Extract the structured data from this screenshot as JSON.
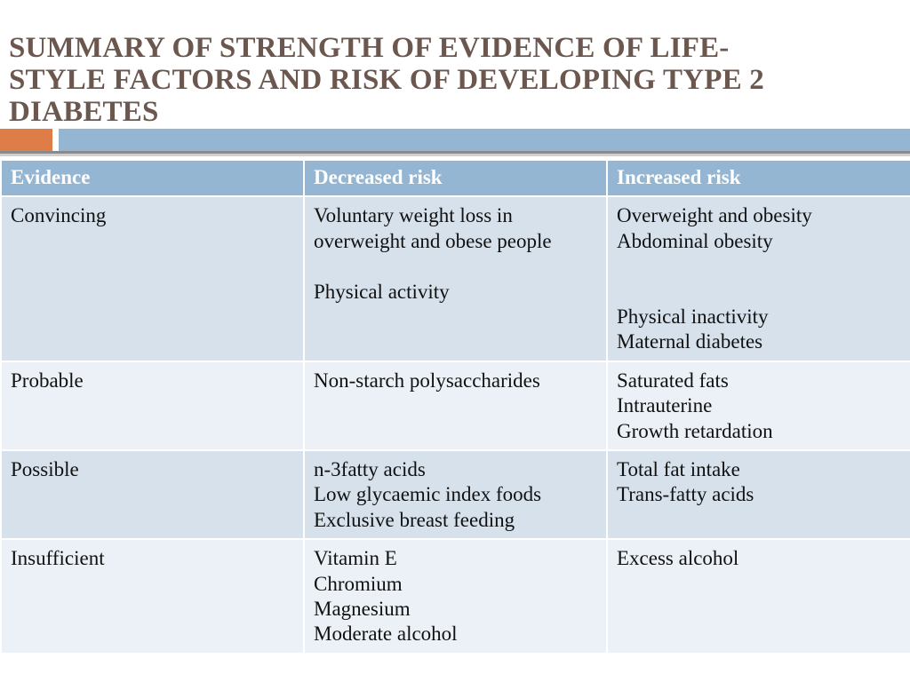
{
  "title": {
    "lines": [
      "SUMMARY OF STRENGTH OF EVIDENCE OF LIFE-",
      "STYLE FACTORS AND RISK OF DEVELOPING TYPE 2",
      "DIABETES"
    ]
  },
  "colors": {
    "title": "#6b574e",
    "accent_orange": "#df7d48",
    "accent_blue": "#94b6d2",
    "header_bg": "#94b6d2",
    "row_dark_bg": "#d6e1eb",
    "row_light_bg": "#ebf1f6"
  },
  "table": {
    "headers": [
      "Evidence",
      "Decreased risk",
      "Increased risk"
    ],
    "rows": [
      {
        "evidence": "Convincing",
        "decreased": [
          "Voluntary weight loss in",
          "overweight and obese people",
          "",
          "Physical activity"
        ],
        "increased": [
          "Overweight and obesity",
          "Abdominal obesity",
          "",
          "",
          "Physical inactivity",
          "Maternal diabetes"
        ]
      },
      {
        "evidence": "Probable",
        "decreased": [
          "Non-starch polysaccharides"
        ],
        "increased": [
          "Saturated fats",
          "Intrauterine",
          "Growth retardation"
        ]
      },
      {
        "evidence": "Possible",
        "decreased": [
          "n-3fatty acids",
          "Low glycaemic index foods",
          "Exclusive breast feeding"
        ],
        "increased": [
          "Total fat intake",
          "Trans-fatty acids"
        ]
      },
      {
        "evidence": "Insufficient",
        "decreased": [
          "Vitamin E",
          "Chromium",
          "Magnesium",
          "Moderate alcohol"
        ],
        "increased": [
          "Excess alcohol"
        ]
      }
    ]
  }
}
